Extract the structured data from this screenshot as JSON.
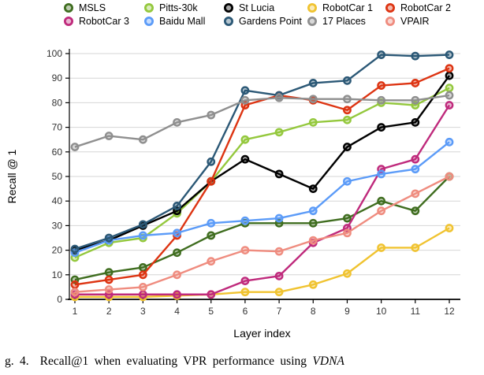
{
  "caption": {
    "prefix": "g. 4.",
    "text": "Recall@1 when evaluating VPR performance using",
    "emphasis": "VDNA"
  },
  "chart_data": {
    "type": "line",
    "title": "",
    "xlabel": "Layer index",
    "ylabel": "Recall @ 1",
    "x": [
      1,
      2,
      3,
      4,
      5,
      6,
      7,
      8,
      9,
      10,
      11,
      12
    ],
    "ylim": [
      0,
      100
    ],
    "yticks": [
      0,
      10,
      20,
      30,
      40,
      50,
      60,
      70,
      80,
      90,
      100
    ],
    "grid": "horizontal",
    "legend_position": "top",
    "marker": "ring-circle",
    "series": [
      {
        "name": "MSLS",
        "color": "#3f6d1f",
        "values": [
          8,
          11,
          13,
          19,
          26,
          31,
          31,
          31,
          33,
          40,
          36,
          50
        ]
      },
      {
        "name": "Pitts-30k",
        "color": "#94c83d",
        "values": [
          17,
          23,
          25,
          35,
          48,
          65,
          68,
          72,
          73,
          80,
          79,
          86
        ]
      },
      {
        "name": "St Lucia",
        "color": "#000000",
        "values": [
          20,
          24,
          30,
          36,
          48,
          57,
          51,
          45,
          62,
          70,
          72,
          91
        ]
      },
      {
        "name": "RobotCar 1",
        "color": "#f0c330",
        "values": [
          1,
          1,
          1,
          1.5,
          2,
          3,
          3,
          6,
          10.5,
          21,
          21,
          29
        ]
      },
      {
        "name": "RobotCar 2",
        "color": "#dd3412",
        "values": [
          6,
          8,
          10,
          26,
          48,
          79,
          83,
          81,
          77,
          87,
          88,
          94
        ]
      },
      {
        "name": "RobotCar 3",
        "color": "#bf2a7c",
        "values": [
          2,
          2,
          2,
          2,
          2,
          7.5,
          9.5,
          23,
          29,
          53,
          57,
          79
        ]
      },
      {
        "name": "Baidu Mall",
        "color": "#5b9bf8",
        "values": [
          19,
          24,
          26,
          27,
          31,
          32,
          33,
          36,
          48,
          51,
          53,
          64
        ]
      },
      {
        "name": "Gardens Point",
        "color": "#2b5876",
        "values": [
          20.5,
          25,
          30.5,
          38,
          56,
          85,
          83,
          88,
          89,
          99.5,
          99,
          99.5
        ]
      },
      {
        "name": "17 Places",
        "color": "#8f8f8f",
        "values": [
          62,
          66.5,
          65,
          72,
          75,
          81,
          82,
          81.5,
          81.5,
          81,
          81,
          83
        ]
      },
      {
        "name": "VPAIR",
        "color": "#ef8c7f",
        "values": [
          3,
          4,
          5,
          10,
          15.5,
          20,
          19.5,
          24,
          27,
          36,
          43,
          50
        ]
      }
    ]
  }
}
